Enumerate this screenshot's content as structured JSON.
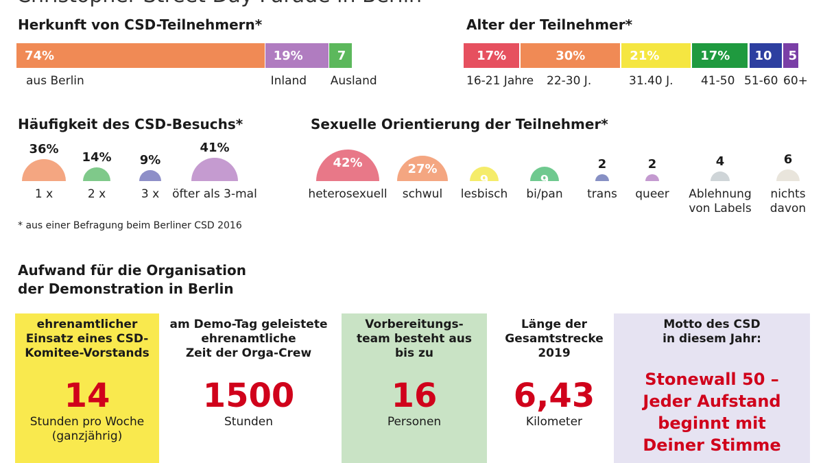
{
  "page_title": "Christopher Street Day Parade in Berlin",
  "colors": {
    "orange": "#f08a55",
    "purple": "#b07cc0",
    "green": "#5cb85c",
    "red": "#e6505f",
    "yellow": "#f5e641",
    "darkgreen": "#1f9a3f",
    "blue": "#2d3fa0",
    "violet": "#7a3fa6",
    "salmon_dome": "#f4a681",
    "green_dome": "#7fc98a",
    "blue_dome": "#8e8fc8",
    "lilac_dome": "#c59bd0",
    "pink_dome": "#e87888",
    "peach_dome": "#f4a681",
    "yellow_dome": "#f5ec6a",
    "teal_dome": "#6fc98f",
    "navy_dome": "#8790c4",
    "mauve_dome": "#c49ad0",
    "grey_dome": "#cfd5d8",
    "beige_dome": "#e9e5dc",
    "box_yellow": "#f9e94e",
    "box_green": "#c9e3c5",
    "box_lilac": "#e6e3f2",
    "accent_red": "#d0021b"
  },
  "footnote": "* aus einer Befragung beim Berliner CSD 2016",
  "chart_data": [
    {
      "type": "bar",
      "title": "Herkunft von CSD-Teilnehmern*",
      "categories": [
        "aus Berlin",
        "Inland",
        "Ausland"
      ],
      "values": [
        74,
        19,
        7
      ],
      "value_labels": [
        "74%",
        "19%",
        "7"
      ]
    },
    {
      "type": "bar",
      "title": "Alter der Teilnehmer*",
      "categories": [
        "16-21 Jahre",
        "22-30 J.",
        "31.40 J.",
        "41-50",
        "51-60",
        "60+"
      ],
      "values": [
        17,
        30,
        21,
        17,
        10,
        5
      ],
      "value_labels": [
        "17%",
        "30%",
        "21%",
        "17%",
        "10",
        "5"
      ]
    },
    {
      "type": "bar",
      "title": "Häufigkeit des CSD-Besuchs*",
      "categories": [
        "1 x",
        "2 x",
        "3 x",
        "öfter als 3-mal"
      ],
      "values": [
        36,
        14,
        9,
        41
      ],
      "value_labels": [
        "36%",
        "14%",
        "9%",
        "41%"
      ]
    },
    {
      "type": "bar",
      "title": "Sexuelle Orientierung der Teilnehmer*",
      "categories": [
        "heterosexuell",
        "schwul",
        "lesbisch",
        "bi/pan",
        "trans",
        "queer",
        "Ablehnung von Labels",
        "nichts davon"
      ],
      "values": [
        42,
        27,
        9,
        9,
        2,
        2,
        4,
        6
      ],
      "value_labels": [
        "42%",
        "27%",
        "9",
        "9",
        "2",
        "2",
        "4",
        "6"
      ]
    }
  ],
  "orga": {
    "title_line1": "Aufwand für die Organisation",
    "title_line2": "der Demonstration in Berlin",
    "boxes": [
      {
        "title": "ehrenamtlicher\nEinsatz eines CSD-\nKomitee-Vorstands",
        "number": "14",
        "unit": "Stunden pro Woche\n(ganzjährig)"
      },
      {
        "title": "am Demo-Tag geleistete\nehrenamtliche\nZeit der Orga-Crew",
        "number": "1500",
        "unit": "Stunden"
      },
      {
        "title": "Vorbereitungs-\nteam besteht aus\nbis zu",
        "number": "16",
        "unit": "Personen"
      },
      {
        "title": "Länge der\nGesamtstrecke\n2019",
        "number": "6,43",
        "unit": "Kilometer"
      },
      {
        "title": "Motto des CSD\nin diesem Jahr:",
        "motto": "Stonewall  50 –\nJeder Aufstand\nbeginnt mit\nDeiner Stimme"
      }
    ]
  }
}
